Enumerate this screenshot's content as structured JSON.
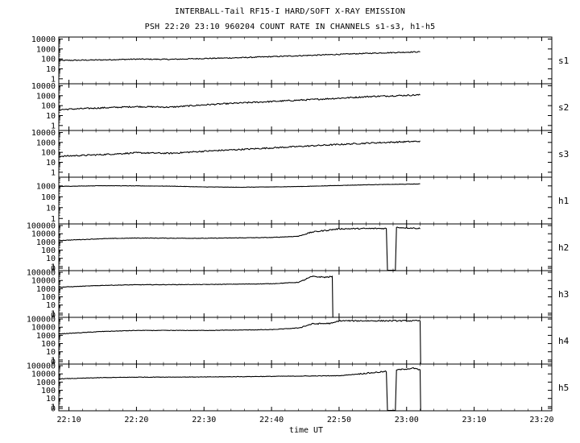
{
  "title_line1": "INTERBALL-Tail RF15-I HARD/SOFT X-RAY EMISSION",
  "title_line2": "PSH 22:20 23:10 960204  COUNT RATE IN CHANNELS s1-s3, h1-h5",
  "xlabel": "time UT",
  "colors": {
    "background": "#ffffff",
    "line": "#000000"
  },
  "chart_data": {
    "type": "line",
    "x_unit": "time UT",
    "x_ticks": [
      "22:10",
      "22:20",
      "22:30",
      "22:40",
      "22:50",
      "23:00",
      "23:10",
      "23:20"
    ],
    "x_range": [
      "22:08:30",
      "23:21:30"
    ],
    "y_scale": "log",
    "grid": false,
    "panels": [
      {
        "name": "s1",
        "y_ticks": [
          "10000",
          "1000",
          "100",
          "10",
          "1"
        ],
        "y_range_log10": [
          -0.5,
          4.2
        ],
        "series": {
          "x": [
            "22:08:30",
            "22:15",
            "22:20",
            "22:25",
            "22:30",
            "22:35",
            "22:40",
            "22:45",
            "22:50",
            "22:55",
            "23:02"
          ],
          "y": [
            70,
            80,
            95,
            90,
            110,
            130,
            170,
            220,
            290,
            380,
            520
          ]
        },
        "noise": 0.05
      },
      {
        "name": "s2",
        "y_ticks": [
          "10000",
          "1000",
          "100",
          "10",
          "1"
        ],
        "y_range_log10": [
          -0.5,
          4.2
        ],
        "series": {
          "x": [
            "22:08:30",
            "22:15",
            "22:20",
            "22:25",
            "22:30",
            "22:35",
            "22:40",
            "22:45",
            "22:50",
            "22:55",
            "23:02"
          ],
          "y": [
            40,
            60,
            80,
            70,
            120,
            180,
            260,
            380,
            560,
            850,
            1200
          ]
        },
        "noise": 0.07
      },
      {
        "name": "s3",
        "y_ticks": [
          "10000",
          "1000",
          "100",
          "10",
          "1"
        ],
        "y_range_log10": [
          -0.5,
          4.2
        ],
        "series": {
          "x": [
            "22:08:30",
            "22:15",
            "22:20",
            "22:25",
            "22:30",
            "22:35",
            "22:40",
            "22:45",
            "22:50",
            "22:55",
            "23:02"
          ],
          "y": [
            40,
            60,
            90,
            80,
            130,
            190,
            280,
            420,
            620,
            900,
            1300
          ]
        },
        "noise": 0.07
      },
      {
        "name": "h1",
        "y_ticks": [
          "1000",
          "100",
          "10",
          "1"
        ],
        "y_range_log10": [
          -0.5,
          3.8
        ],
        "series": {
          "x": [
            "22:08:30",
            "22:15",
            "22:20",
            "22:25",
            "22:30",
            "22:35",
            "22:40",
            "22:45",
            "22:50",
            "22:55",
            "23:02"
          ],
          "y": [
            900,
            1050,
            1000,
            950,
            800,
            750,
            800,
            900,
            1100,
            1300,
            1500
          ]
        },
        "noise": 0.015
      },
      {
        "name": "h2",
        "y_ticks": [
          "100000",
          "10000",
          "1000",
          "100",
          "10",
          "1",
          "0"
        ],
        "y_range_log10": [
          -0.5,
          5.2
        ],
        "series": {
          "x": [
            "22:08:30",
            "22:15",
            "22:20",
            "22:30",
            "22:40",
            "22:44",
            "22:46",
            "22:50",
            "22:57",
            "22:57:10",
            "22:58:20",
            "22:58:30",
            "23:02"
          ],
          "y": [
            1500,
            2500,
            3000,
            2800,
            3500,
            5000,
            16000,
            40000,
            45000,
            0.3,
            0.3,
            60000,
            45000
          ]
        },
        "noise": 0.03
      },
      {
        "name": "h3",
        "y_ticks": [
          "100000",
          "10000",
          "1000",
          "100",
          "10",
          "1",
          "0"
        ],
        "y_range_log10": [
          -0.5,
          5.2
        ],
        "series": {
          "x": [
            "22:08:30",
            "22:15",
            "22:20",
            "22:30",
            "22:40",
            "22:44",
            "22:46",
            "22:48",
            "22:49",
            "22:49:05"
          ],
          "y": [
            1500,
            2500,
            3000,
            3200,
            4000,
            6000,
            30000,
            25000,
            30000,
            0.3
          ]
        },
        "noise": 0.03
      },
      {
        "name": "h4",
        "y_ticks": [
          "100000",
          "10000",
          "1000",
          "100",
          "10",
          "1",
          "0"
        ],
        "y_range_log10": [
          -0.5,
          5.2
        ],
        "series": {
          "x": [
            "22:08:30",
            "22:15",
            "22:20",
            "22:30",
            "22:40",
            "22:44",
            "22:46",
            "22:49",
            "22:50",
            "23:02",
            "23:02:05"
          ],
          "y": [
            1500,
            3000,
            4000,
            4000,
            5000,
            8000,
            25000,
            30000,
            60000,
            60000,
            0.3
          ]
        },
        "noise": 0.03
      },
      {
        "name": "h5",
        "y_ticks": [
          "100000",
          "10000",
          "1000",
          "100",
          "10",
          "1",
          "0"
        ],
        "y_range_log10": [
          -0.5,
          5.2
        ],
        "series": {
          "x": [
            "22:08:30",
            "22:15",
            "22:20",
            "22:30",
            "22:40",
            "22:50",
            "22:57",
            "22:57:10",
            "22:58:20",
            "22:58:30",
            "23:01",
            "23:02",
            "23:02:05"
          ],
          "y": [
            2500,
            3500,
            4000,
            4200,
            5000,
            6000,
            20000,
            0.3,
            0.3,
            30000,
            50000,
            30000,
            0.3
          ]
        },
        "noise": 0.03
      }
    ]
  }
}
